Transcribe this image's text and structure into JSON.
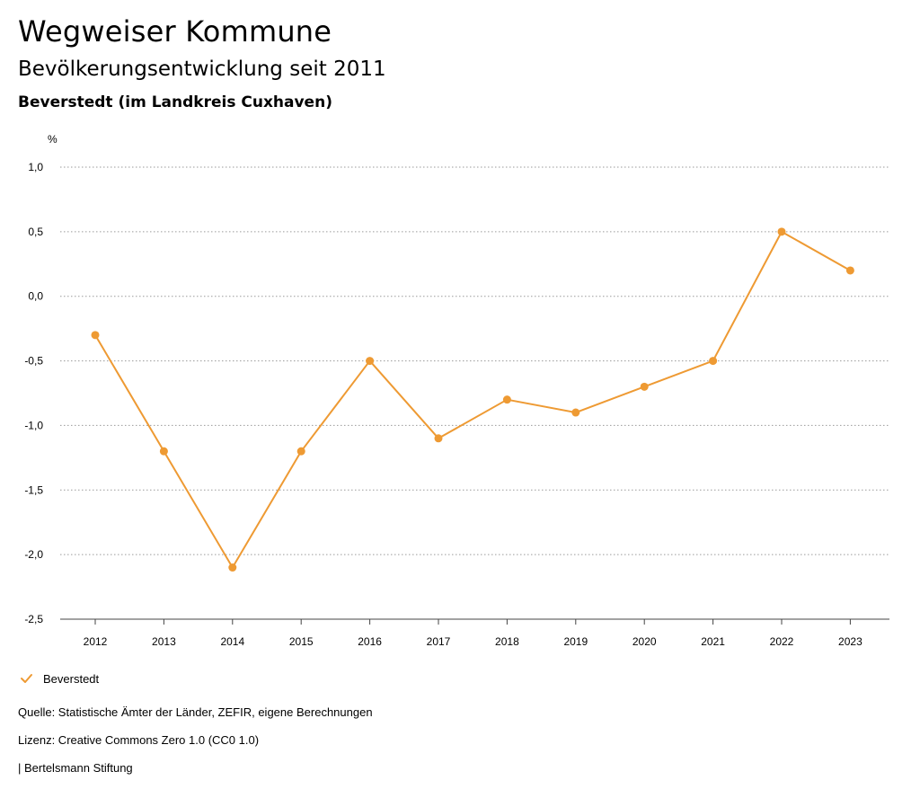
{
  "header": {
    "title": "Wegweiser Kommune",
    "subtitle": "Bevölkerungsentwicklung seit 2011",
    "region": "Beverstedt (im Landkreis Cuxhaven)"
  },
  "colors": {
    "series": "#EE9A33",
    "grid": "#9a9a9a",
    "axis": "#444444"
  },
  "chart_data": {
    "type": "line",
    "title": "Bevölkerungsentwicklung seit 2011",
    "ylabel": "%",
    "xlabel": "",
    "categories": [
      "2012",
      "2013",
      "2014",
      "2015",
      "2016",
      "2017",
      "2018",
      "2019",
      "2020",
      "2021",
      "2022",
      "2023"
    ],
    "ylim": [
      -2.5,
      1.0
    ],
    "yticks": [
      1.0,
      0.5,
      0.0,
      -0.5,
      -1.0,
      -1.5,
      -2.0,
      -2.5
    ],
    "ytick_labels": [
      "1,0",
      "0,5",
      "0,0",
      "-0,5",
      "-1,0",
      "-1,5",
      "-2,0",
      "-2,5"
    ],
    "grid": true,
    "legend_position": "bottom-left",
    "series": [
      {
        "name": "Beverstedt",
        "values": [
          -0.3,
          -1.2,
          -2.1,
          -1.2,
          -0.5,
          -1.1,
          -0.8,
          -0.9,
          -0.7,
          -0.5,
          0.5,
          0.2
        ]
      }
    ]
  },
  "legend": {
    "label": "Beverstedt",
    "icon": "check-icon"
  },
  "footer": {
    "source": "Quelle: Statistische Ämter der Länder, ZEFIR, eigene Berechnungen",
    "license": "Lizenz: Creative Commons Zero 1.0 (CC0 1.0)",
    "publisher": "| Bertelsmann Stiftung"
  }
}
